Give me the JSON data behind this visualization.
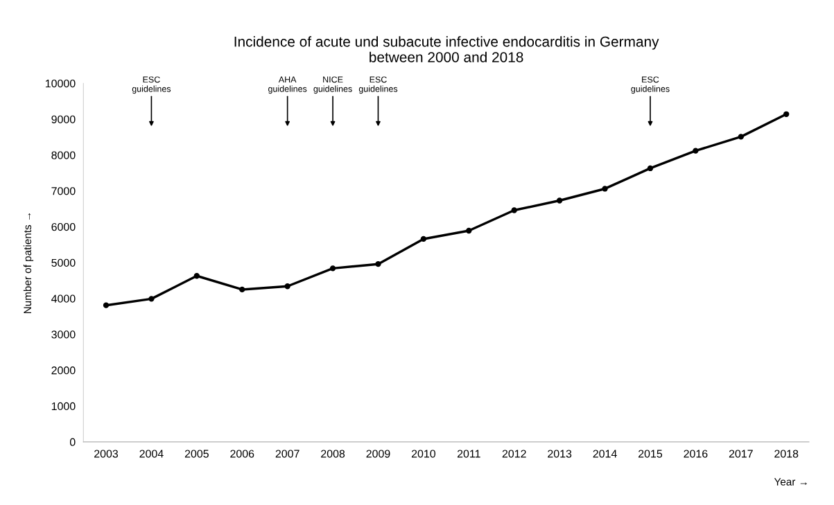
{
  "chart_data": {
    "type": "line",
    "title": "Incidence of acute und subacute infective endocarditis in Germany\nbetween 2000 and 2018",
    "xlabel": "Year →",
    "ylabel": "Number of patients →",
    "categories": [
      "2003",
      "2004",
      "2005",
      "2006",
      "2007",
      "2008",
      "2009",
      "2010",
      "2011",
      "2012",
      "2013",
      "2014",
      "2015",
      "2016",
      "2017",
      "2018"
    ],
    "series": [
      {
        "color": "#000000",
        "values": [
          3810,
          3990,
          4630,
          4250,
          4340,
          4840,
          4960,
          5660,
          5890,
          6460,
          6730,
          7060,
          7630,
          8120,
          8510,
          9140
        ]
      }
    ],
    "ylim": [
      0,
      10000
    ],
    "yticks": [
      0,
      1000,
      2000,
      3000,
      4000,
      5000,
      6000,
      7000,
      8000,
      9000,
      10000
    ],
    "marker": "circle",
    "line_style": "solid",
    "grid": false,
    "legend": false,
    "annotations": [
      {
        "text": "ESC\nguidelines",
        "x": "2004"
      },
      {
        "text": "AHA\nguidelines",
        "x": "2007"
      },
      {
        "text": "NICE\nguidelines",
        "x": "2008"
      },
      {
        "text": "ESC\nguidelines",
        "x": "2009"
      },
      {
        "text": "ESC\nguidelines",
        "x": "2015"
      }
    ]
  }
}
